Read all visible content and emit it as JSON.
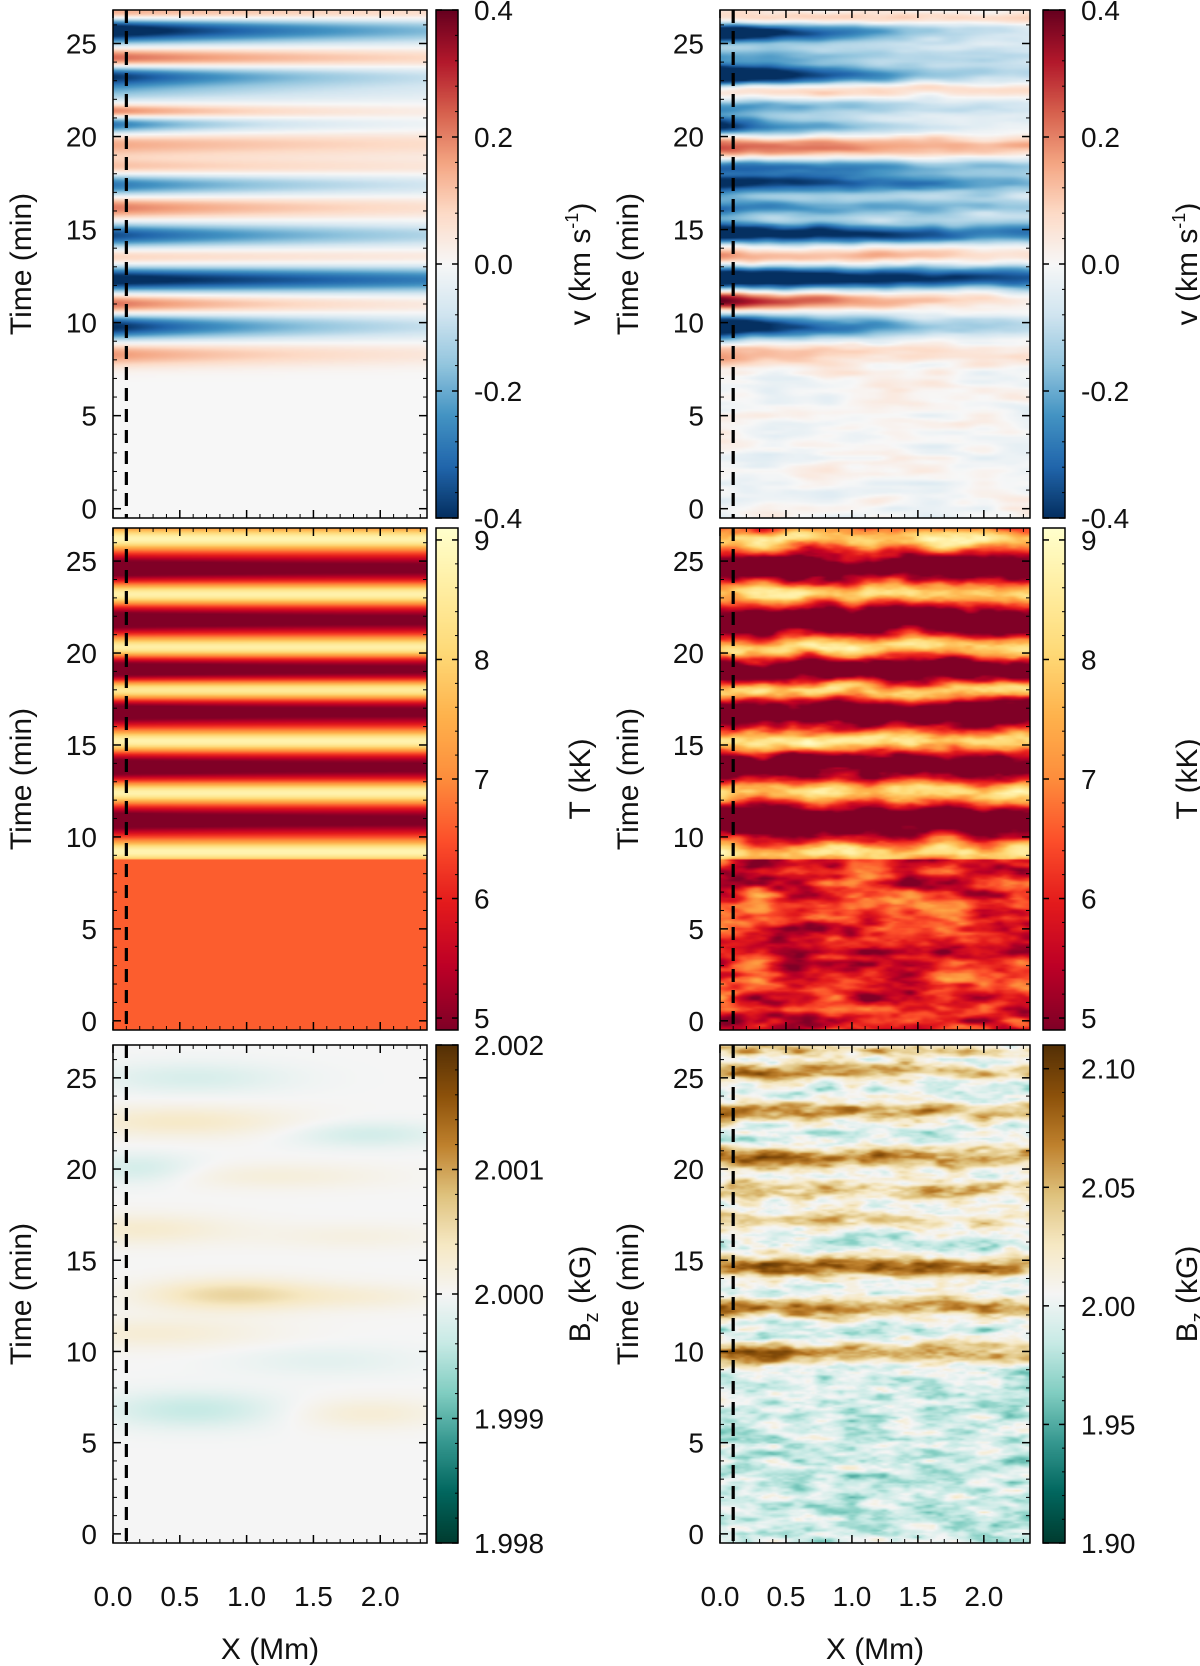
{
  "chart_data": [
    {
      "type": "heatmap",
      "id": "v-left",
      "variant": "smooth",
      "quantity": "v",
      "xlabel": "",
      "ylabel": "Time (min)",
      "xlim": [
        0,
        2.35
      ],
      "ylim": [
        -0.5,
        26.8
      ],
      "yticks": [
        0,
        5,
        10,
        15,
        20,
        25
      ],
      "xticks": [
        0.0,
        0.5,
        1.0,
        1.5,
        2.0
      ],
      "dashed_line_x": 0.1,
      "colormap": "RdBu_r",
      "colorbar": {
        "label": "v (km s",
        "label_sup": "-1",
        "label_end": ")",
        "range": [
          -0.4,
          0.4
        ],
        "ticks": [
          -0.4,
          -0.2,
          0.0,
          0.2,
          0.4
        ],
        "tick_labels": [
          "-0.4",
          "-0.2",
          "0.0",
          "0.2",
          "0.4"
        ]
      },
      "bands": [
        {
          "t": 8.3,
          "v": 0.18,
          "w": 0.45,
          "decay": 1.8
        },
        {
          "t": 9.8,
          "v": -0.42,
          "w": 0.5,
          "decay": 1.6
        },
        {
          "t": 11.0,
          "v": 0.26,
          "w": 0.45,
          "decay": 1.5
        },
        {
          "t": 12.3,
          "v": -0.45,
          "w": 0.5,
          "decay": 5.0
        },
        {
          "t": 13.5,
          "v": 0.12,
          "w": 0.35,
          "decay": 3.0
        },
        {
          "t": 14.7,
          "v": -0.36,
          "w": 0.45,
          "decay": 2.2
        },
        {
          "t": 16.2,
          "v": 0.22,
          "w": 0.45,
          "decay": 2.0
        },
        {
          "t": 17.4,
          "v": -0.3,
          "w": 0.45,
          "decay": 1.8
        },
        {
          "t": 18.3,
          "v": 0.14,
          "w": 0.35,
          "decay": 2.5
        },
        {
          "t": 19.6,
          "v": 0.16,
          "w": 0.5,
          "decay": 3.0
        },
        {
          "t": 20.7,
          "v": -0.34,
          "w": 0.4,
          "decay": 1.0
        },
        {
          "t": 21.3,
          "v": 0.3,
          "w": 0.3,
          "decay": 1.2
        },
        {
          "t": 22.5,
          "v": -0.16,
          "w": 0.5,
          "decay": 2.0
        },
        {
          "t": 23.3,
          "v": -0.36,
          "w": 0.4,
          "decay": 1.6
        },
        {
          "t": 24.2,
          "v": 0.26,
          "w": 0.4,
          "decay": 2.2
        },
        {
          "t": 25.7,
          "v": -0.48,
          "w": 0.5,
          "decay": 2.4
        },
        {
          "t": 26.6,
          "v": 0.22,
          "w": 0.3,
          "decay": 3.0
        }
      ]
    },
    {
      "type": "heatmap",
      "id": "v-right",
      "variant": "noisy",
      "quantity": "v",
      "xlabel": "",
      "ylabel": "Time (min)",
      "xlim": [
        0,
        2.35
      ],
      "ylim": [
        -0.5,
        26.8
      ],
      "yticks": [
        0,
        5,
        10,
        15,
        20,
        25
      ],
      "xticks": [
        0.0,
        0.5,
        1.0,
        1.5,
        2.0
      ],
      "dashed_line_x": 0.1,
      "colormap": "RdBu_r",
      "colorbar": {
        "label": "v (km s",
        "label_sup": "-1",
        "label_end": ")",
        "range": [
          -0.4,
          0.4
        ],
        "ticks": [
          -0.4,
          -0.2,
          0.0,
          0.2,
          0.4
        ],
        "tick_labels": [
          "-0.4",
          "-0.2",
          "0.0",
          "0.2",
          "0.4"
        ]
      },
      "bands": [
        {
          "t": 8.3,
          "v": 0.16,
          "w": 0.4,
          "decay": 2.0
        },
        {
          "t": 9.8,
          "v": -0.55,
          "w": 0.45,
          "decay": 1.4
        },
        {
          "t": 11.2,
          "v": 0.4,
          "w": 0.35,
          "decay": 1.2
        },
        {
          "t": 12.4,
          "v": -0.55,
          "w": 0.45,
          "decay": 5.0
        },
        {
          "t": 13.6,
          "v": 0.2,
          "w": 0.3,
          "decay": 3.0
        },
        {
          "t": 14.8,
          "v": -0.5,
          "w": 0.4,
          "decay": 4.0
        },
        {
          "t": 16.2,
          "v": -0.3,
          "w": 0.4,
          "decay": 3.0
        },
        {
          "t": 17.5,
          "v": -0.45,
          "w": 0.4,
          "decay": 3.0
        },
        {
          "t": 18.4,
          "v": -0.3,
          "w": 0.3,
          "decay": 3.0
        },
        {
          "t": 19.5,
          "v": 0.28,
          "w": 0.4,
          "decay": 3.0
        },
        {
          "t": 20.6,
          "v": -0.4,
          "w": 0.4,
          "decay": 1.0
        },
        {
          "t": 21.6,
          "v": -0.25,
          "w": 0.3,
          "decay": 2.0
        },
        {
          "t": 22.6,
          "v": 0.2,
          "w": 0.3,
          "decay": 3.0
        },
        {
          "t": 23.3,
          "v": -0.6,
          "w": 0.45,
          "decay": 1.4
        },
        {
          "t": 24.4,
          "v": -0.2,
          "w": 0.3,
          "decay": 2.5
        },
        {
          "t": 25.6,
          "v": -0.6,
          "w": 0.4,
          "decay": 1.2
        },
        {
          "t": 26.3,
          "v": 0.15,
          "w": 0.3,
          "decay": 3.0
        }
      ]
    },
    {
      "type": "heatmap",
      "id": "T-left",
      "variant": "smooth",
      "quantity": "T",
      "xlabel": "",
      "ylabel": "Time (min)",
      "xlim": [
        0,
        2.35
      ],
      "ylim": [
        -0.5,
        26.8
      ],
      "yticks": [
        0,
        5,
        10,
        15,
        20,
        25
      ],
      "xticks": [
        0.0,
        0.5,
        1.0,
        1.5,
        2.0
      ],
      "dashed_line_x": 0.1,
      "colormap": "YlOrRd_r",
      "colorbar": {
        "label": "T (kK)",
        "range": [
          4.9,
          9.1
        ],
        "ticks": [
          5,
          6,
          7,
          8,
          9
        ],
        "tick_labels": [
          "5",
          "6",
          "7",
          "8",
          "9"
        ]
      },
      "base": 6.6,
      "oscillation_start": 8.8,
      "dark_bands": [
        10.9,
        13.8,
        16.8,
        19.1,
        21.8,
        24.6
      ],
      "bright_bands": [
        9.2,
        12.4,
        15.2,
        18.0,
        20.3,
        23.2,
        26.2
      ]
    },
    {
      "type": "heatmap",
      "id": "T-right",
      "variant": "noisy",
      "quantity": "T",
      "xlabel": "",
      "ylabel": "Time (min)",
      "xlim": [
        0,
        2.35
      ],
      "ylim": [
        -0.5,
        26.8
      ],
      "yticks": [
        0,
        5,
        10,
        15,
        20,
        25
      ],
      "xticks": [
        0.0,
        0.5,
        1.0,
        1.5,
        2.0
      ],
      "dashed_line_x": 0.1,
      "colormap": "YlOrRd_r",
      "colorbar": {
        "label": "T (kK)",
        "range": [
          4.9,
          9.1
        ],
        "ticks": [
          5,
          6,
          7,
          8,
          9
        ],
        "tick_labels": [
          "5",
          "6",
          "7",
          "8",
          "9"
        ]
      },
      "base": 6.0,
      "oscillation_start": 8.8,
      "dark_bands": [
        10.9,
        13.8,
        16.8,
        19.1,
        21.8,
        24.6
      ],
      "bright_bands": [
        9.2,
        12.4,
        15.2,
        18.0,
        20.3,
        23.2,
        26.2
      ]
    },
    {
      "type": "heatmap",
      "id": "Bz-left",
      "variant": "smooth",
      "quantity": "Bz",
      "xlabel": "X (Mm)",
      "ylabel": "Time (min)",
      "xlim": [
        0,
        2.35
      ],
      "ylim": [
        -0.5,
        26.8
      ],
      "yticks": [
        0,
        5,
        10,
        15,
        20,
        25
      ],
      "xticks": [
        0.0,
        0.5,
        1.0,
        1.5,
        2.0
      ],
      "x_tick_labels": [
        "0.0",
        "0.5",
        "1.0",
        "1.5",
        "2.0"
      ],
      "dashed_line_x": 0.1,
      "colormap": "BrBG_r",
      "colorbar": {
        "label": "B",
        "label_sub": "z",
        "label_end": " (kG)",
        "range": [
          1.998,
          2.002
        ],
        "ticks": [
          1.998,
          1.999,
          2.0,
          2.001,
          2.002
        ],
        "tick_labels": [
          "1.998",
          "1.999",
          "2.000",
          "2.001",
          "2.002"
        ]
      },
      "blobs": [
        {
          "t": 25.0,
          "x": 0.6,
          "v": -0.00025,
          "sx": 0.5,
          "st": 0.6
        },
        {
          "t": 22.6,
          "x": 0.5,
          "v": 0.00035,
          "sx": 0.6,
          "st": 0.6
        },
        {
          "t": 21.9,
          "x": 1.9,
          "v": -0.0003,
          "sx": 0.4,
          "st": 0.5
        },
        {
          "t": 20.0,
          "x": 0.2,
          "v": -0.0003,
          "sx": 0.3,
          "st": 0.6
        },
        {
          "t": 19.6,
          "x": 1.2,
          "v": 0.0002,
          "sx": 0.6,
          "st": 0.5
        },
        {
          "t": 16.7,
          "x": 0.2,
          "v": 0.0003,
          "sx": 0.5,
          "st": 0.6
        },
        {
          "t": 16.3,
          "x": 1.8,
          "v": 0.00015,
          "sx": 0.5,
          "st": 0.5
        },
        {
          "t": 13.1,
          "x": 0.9,
          "v": 0.0006,
          "sx": 0.45,
          "st": 0.6
        },
        {
          "t": 13.0,
          "x": 1.9,
          "v": 0.0002,
          "sx": 0.4,
          "st": 0.5
        },
        {
          "t": 11.0,
          "x": 0.3,
          "v": 0.00025,
          "sx": 0.6,
          "st": 0.6
        },
        {
          "t": 9.5,
          "x": 1.6,
          "v": -0.00015,
          "sx": 0.5,
          "st": 0.6
        },
        {
          "t": 6.8,
          "x": 0.6,
          "v": -0.0004,
          "sx": 0.45,
          "st": 0.7
        },
        {
          "t": 6.6,
          "x": 1.9,
          "v": 0.00025,
          "sx": 0.4,
          "st": 0.6
        }
      ]
    },
    {
      "type": "heatmap",
      "id": "Bz-right",
      "variant": "noisy",
      "quantity": "Bz",
      "xlabel": "X (Mm)",
      "ylabel": "Time (min)",
      "xlim": [
        0,
        2.35
      ],
      "ylim": [
        -0.5,
        26.8
      ],
      "yticks": [
        0,
        5,
        10,
        15,
        20,
        25
      ],
      "xticks": [
        0.0,
        0.5,
        1.0,
        1.5,
        2.0
      ],
      "x_tick_labels": [
        "0.0",
        "0.5",
        "1.0",
        "1.5",
        "2.0"
      ],
      "dashed_line_x": 0.1,
      "colormap": "BrBG_r",
      "colorbar": {
        "label": "B",
        "label_sub": "z",
        "label_end": " (kG)",
        "range": [
          1.9,
          2.11
        ],
        "ticks": [
          1.9,
          1.95,
          2.0,
          2.05,
          2.1
        ],
        "tick_labels": [
          "1.90",
          "1.95",
          "2.00",
          "2.05",
          "2.10"
        ]
      },
      "bands": [
        {
          "t": 9.9,
          "v": 0.1,
          "w": 0.45,
          "decay": 1.2
        },
        {
          "t": 12.4,
          "v": 0.1,
          "w": 0.4,
          "decay": 2.0
        },
        {
          "t": 14.7,
          "v": 0.1,
          "w": 0.45,
          "decay": 3.0
        },
        {
          "t": 17.2,
          "v": 0.06,
          "w": 0.4,
          "decay": 3.0
        },
        {
          "t": 18.8,
          "v": 0.07,
          "w": 0.4,
          "decay": 3.0
        },
        {
          "t": 20.6,
          "v": 0.1,
          "w": 0.45,
          "decay": 2.5
        },
        {
          "t": 23.2,
          "v": 0.1,
          "w": 0.4,
          "decay": 1.4
        },
        {
          "t": 25.3,
          "v": 0.08,
          "w": 0.4,
          "decay": 2.0
        },
        {
          "t": 26.5,
          "v": 0.06,
          "w": 0.3,
          "decay": 3.0
        }
      ]
    }
  ]
}
